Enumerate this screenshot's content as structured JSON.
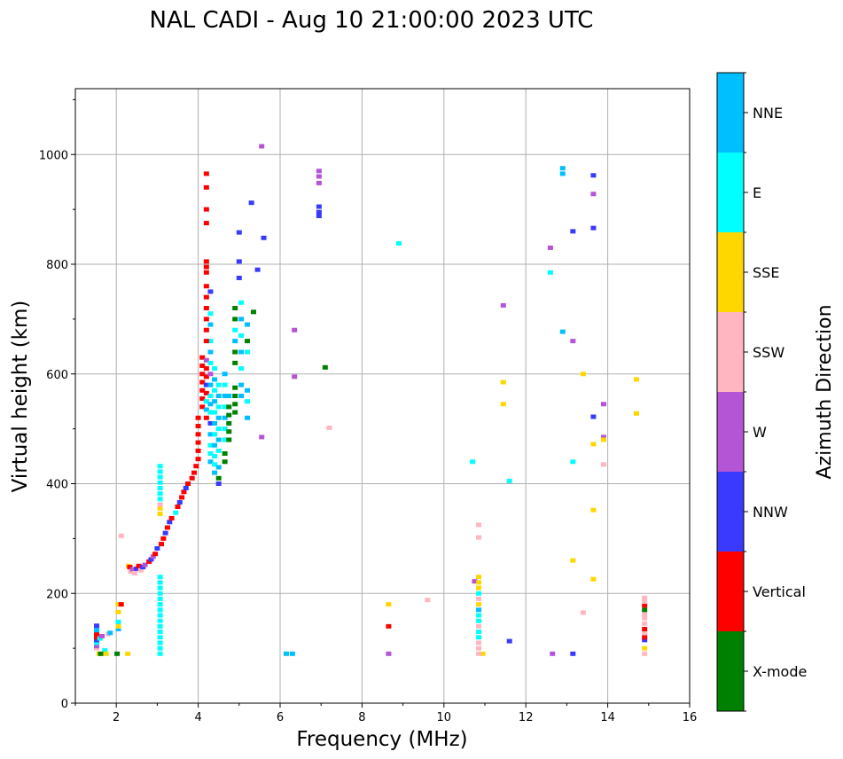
{
  "chart_data": {
    "type": "scatter",
    "title": "NAL CADI - Aug 10 21:00:00 2023 UTC",
    "xlabel": "Frequency (MHz)",
    "ylabel": "Virtual height (km)",
    "xlim": [
      1,
      16
    ],
    "ylim": [
      0,
      1120
    ],
    "xticks": [
      2,
      4,
      6,
      8,
      10,
      12,
      14,
      16
    ],
    "xtick_labels": [
      "2",
      "4",
      "6",
      "8",
      "10",
      "12",
      "14",
      "16"
    ],
    "yticks": [
      0,
      200,
      400,
      600,
      800,
      1000
    ],
    "ytick_labels": [
      "0",
      "200",
      "400",
      "600",
      "800",
      "1000"
    ],
    "grid": true,
    "colorbar": {
      "title": "Azimuth Direction",
      "categories": [
        "X-mode",
        "Vertical",
        "NNW",
        "W",
        "SSW",
        "SSE",
        "E",
        "NNE"
      ],
      "colors": [
        "#008000",
        "#ff0000",
        "#3a3aff",
        "#b455d6",
        "#ffb6c1",
        "#ffd700",
        "#00ffff",
        "#00bfff"
      ]
    },
    "points": [
      [
        1.52,
        100,
        "SSW"
      ],
      [
        1.52,
        104,
        "W"
      ],
      [
        1.52,
        110,
        "E"
      ],
      [
        1.52,
        115,
        "NNW"
      ],
      [
        1.52,
        120,
        "Vertical"
      ],
      [
        1.52,
        127,
        "Vertical"
      ],
      [
        1.52,
        133,
        "NNE"
      ],
      [
        1.52,
        141,
        "NNW"
      ],
      [
        1.6,
        118,
        "E"
      ],
      [
        1.65,
        122,
        "W"
      ],
      [
        1.72,
        96,
        "E"
      ],
      [
        1.8,
        126,
        "SSW"
      ],
      [
        1.85,
        128,
        "NNE"
      ],
      [
        1.58,
        90,
        "SSE"
      ],
      [
        1.62,
        90,
        "X-mode"
      ],
      [
        1.75,
        90,
        "SSE"
      ],
      [
        2.02,
        90,
        "X-mode"
      ],
      [
        2.28,
        90,
        "SSE"
      ],
      [
        2.05,
        135,
        "NNE"
      ],
      [
        2.05,
        140,
        "SSE"
      ],
      [
        2.05,
        148,
        "E"
      ],
      [
        2.05,
        166,
        "SSE"
      ],
      [
        2.05,
        180,
        "SSE"
      ],
      [
        2.12,
        180,
        "Vertical"
      ],
      [
        2.12,
        305,
        "SSW"
      ],
      [
        2.3,
        250,
        "SSE"
      ],
      [
        2.33,
        248,
        "Vertical"
      ],
      [
        2.35,
        240,
        "SSW"
      ],
      [
        2.4,
        244,
        "W"
      ],
      [
        2.45,
        237,
        "SSW"
      ],
      [
        2.5,
        245,
        "NNW"
      ],
      [
        2.55,
        250,
        "Vertical"
      ],
      [
        2.6,
        242,
        "SSW"
      ],
      [
        2.65,
        248,
        "NNW"
      ],
      [
        2.7,
        252,
        "W"
      ],
      [
        2.8,
        258,
        "Vertical"
      ],
      [
        2.85,
        262,
        "NNW"
      ],
      [
        2.9,
        267,
        "W"
      ],
      [
        2.95,
        272,
        "Vertical"
      ],
      [
        3.0,
        282,
        "NNW"
      ],
      [
        3.1,
        290,
        "Vertical"
      ],
      [
        3.15,
        300,
        "Vertical"
      ],
      [
        3.2,
        310,
        "NNW"
      ],
      [
        3.25,
        320,
        "Vertical"
      ],
      [
        3.3,
        330,
        "NNW"
      ],
      [
        3.35,
        337,
        "Vertical"
      ],
      [
        3.45,
        347,
        "E"
      ],
      [
        3.5,
        358,
        "Vertical"
      ],
      [
        3.55,
        366,
        "NNW"
      ],
      [
        3.6,
        375,
        "Vertical"
      ],
      [
        3.65,
        385,
        "Vertical"
      ],
      [
        3.7,
        392,
        "NNW"
      ],
      [
        3.75,
        400,
        "Vertical"
      ],
      [
        3.85,
        410,
        "Vertical"
      ],
      [
        3.9,
        420,
        "Vertical"
      ],
      [
        3.95,
        432,
        "Vertical"
      ],
      [
        4.0,
        445,
        "Vertical"
      ],
      [
        3.07,
        90,
        "E"
      ],
      [
        3.07,
        100,
        "E"
      ],
      [
        3.07,
        110,
        "E"
      ],
      [
        3.07,
        120,
        "E"
      ],
      [
        3.07,
        130,
        "E"
      ],
      [
        3.07,
        140,
        "E"
      ],
      [
        3.07,
        150,
        "E"
      ],
      [
        3.07,
        160,
        "E"
      ],
      [
        3.07,
        170,
        "E"
      ],
      [
        3.07,
        180,
        "E"
      ],
      [
        3.07,
        190,
        "E"
      ],
      [
        3.07,
        200,
        "E"
      ],
      [
        3.07,
        210,
        "E"
      ],
      [
        3.07,
        220,
        "E"
      ],
      [
        3.07,
        230,
        "E"
      ],
      [
        3.07,
        345,
        "SSE"
      ],
      [
        3.07,
        355,
        "SSE"
      ],
      [
        3.07,
        362,
        "SSW"
      ],
      [
        3.07,
        372,
        "E"
      ],
      [
        3.07,
        382,
        "E"
      ],
      [
        3.07,
        392,
        "E"
      ],
      [
        3.07,
        402,
        "E"
      ],
      [
        3.07,
        412,
        "E"
      ],
      [
        3.07,
        422,
        "E"
      ],
      [
        3.07,
        432,
        "E"
      ],
      [
        4.0,
        460,
        "Vertical"
      ],
      [
        4.0,
        475,
        "Vertical"
      ],
      [
        4.0,
        490,
        "Vertical"
      ],
      [
        4.0,
        505,
        "Vertical"
      ],
      [
        4.0,
        520,
        "Vertical"
      ],
      [
        4.1,
        540,
        "Vertical"
      ],
      [
        4.1,
        555,
        "Vertical"
      ],
      [
        4.1,
        570,
        "Vertical"
      ],
      [
        4.1,
        585,
        "Vertical"
      ],
      [
        4.1,
        600,
        "Vertical"
      ],
      [
        4.1,
        615,
        "Vertical"
      ],
      [
        4.1,
        630,
        "Vertical"
      ],
      [
        4.2,
        520,
        "Vertical"
      ],
      [
        4.2,
        535,
        "NNE"
      ],
      [
        4.2,
        550,
        "E"
      ],
      [
        4.2,
        565,
        "Vertical"
      ],
      [
        4.2,
        580,
        "NNW"
      ],
      [
        4.2,
        595,
        "Vertical"
      ],
      [
        4.2,
        610,
        "Vertical"
      ],
      [
        4.2,
        625,
        "W"
      ],
      [
        4.3,
        440,
        "NNE"
      ],
      [
        4.3,
        455,
        "E"
      ],
      [
        4.3,
        470,
        "E"
      ],
      [
        4.3,
        490,
        "NNE"
      ],
      [
        4.3,
        510,
        "NNW"
      ],
      [
        4.3,
        530,
        "E"
      ],
      [
        4.3,
        545,
        "NNE"
      ],
      [
        4.3,
        560,
        "E"
      ],
      [
        4.3,
        580,
        "NNE"
      ],
      [
        4.3,
        600,
        "W"
      ],
      [
        4.3,
        620,
        "E"
      ],
      [
        4.3,
        640,
        "NNE"
      ],
      [
        4.3,
        660,
        "E"
      ],
      [
        4.3,
        690,
        "NNE"
      ],
      [
        4.3,
        710,
        "E"
      ],
      [
        4.3,
        750,
        "NNW"
      ],
      [
        4.4,
        420,
        "NNE"
      ],
      [
        4.4,
        435,
        "E"
      ],
      [
        4.4,
        450,
        "E"
      ],
      [
        4.4,
        470,
        "NNE"
      ],
      [
        4.4,
        490,
        "E"
      ],
      [
        4.4,
        510,
        "NNE"
      ],
      [
        4.4,
        530,
        "E"
      ],
      [
        4.4,
        550,
        "NNE"
      ],
      [
        4.4,
        570,
        "E"
      ],
      [
        4.4,
        590,
        "NNE"
      ],
      [
        4.4,
        610,
        "E"
      ],
      [
        4.5,
        400,
        "NNW"
      ],
      [
        4.5,
        410,
        "X-mode"
      ],
      [
        4.5,
        430,
        "NNE"
      ],
      [
        4.5,
        460,
        "E"
      ],
      [
        4.5,
        480,
        "NNE"
      ],
      [
        4.5,
        500,
        "E"
      ],
      [
        4.5,
        520,
        "NNE"
      ],
      [
        4.5,
        540,
        "E"
      ],
      [
        4.5,
        560,
        "NNE"
      ],
      [
        4.5,
        580,
        "E"
      ],
      [
        4.65,
        440,
        "X-mode"
      ],
      [
        4.65,
        455,
        "X-mode"
      ],
      [
        4.65,
        480,
        "E"
      ],
      [
        4.65,
        500,
        "E"
      ],
      [
        4.65,
        520,
        "NNE"
      ],
      [
        4.65,
        540,
        "E"
      ],
      [
        4.65,
        560,
        "NNE"
      ],
      [
        4.65,
        580,
        "E"
      ],
      [
        4.65,
        600,
        "NNE"
      ],
      [
        4.75,
        480,
        "X-mode"
      ],
      [
        4.75,
        495,
        "X-mode"
      ],
      [
        4.75,
        510,
        "X-mode"
      ],
      [
        4.75,
        525,
        "X-mode"
      ],
      [
        4.75,
        540,
        "X-mode"
      ],
      [
        4.75,
        560,
        "NNE"
      ],
      [
        4.9,
        530,
        "X-mode"
      ],
      [
        4.9,
        545,
        "X-mode"
      ],
      [
        4.9,
        560,
        "X-mode"
      ],
      [
        4.9,
        575,
        "X-mode"
      ],
      [
        4.9,
        620,
        "X-mode"
      ],
      [
        4.9,
        640,
        "X-mode"
      ],
      [
        4.9,
        660,
        "NNE"
      ],
      [
        4.9,
        680,
        "E"
      ],
      [
        4.9,
        700,
        "X-mode"
      ],
      [
        4.9,
        720,
        "X-mode"
      ],
      [
        5.05,
        560,
        "NNE"
      ],
      [
        5.05,
        580,
        "NNE"
      ],
      [
        5.05,
        610,
        "E"
      ],
      [
        5.05,
        640,
        "NNE"
      ],
      [
        5.05,
        670,
        "E"
      ],
      [
        5.05,
        700,
        "NNE"
      ],
      [
        5.05,
        730,
        "E"
      ],
      [
        5.2,
        520,
        "NNE"
      ],
      [
        5.2,
        550,
        "E"
      ],
      [
        5.2,
        570,
        "NNE"
      ],
      [
        5.2,
        640,
        "E"
      ],
      [
        5.2,
        660,
        "X-mode"
      ],
      [
        5.2,
        690,
        "NNE"
      ],
      [
        4.2,
        965,
        "Vertical"
      ],
      [
        4.2,
        940,
        "Vertical"
      ],
      [
        4.2,
        900,
        "Vertical"
      ],
      [
        4.2,
        875,
        "Vertical"
      ],
      [
        4.2,
        805,
        "Vertical"
      ],
      [
        4.2,
        795,
        "Vertical"
      ],
      [
        4.2,
        785,
        "Vertical"
      ],
      [
        4.2,
        760,
        "Vertical"
      ],
      [
        4.2,
        740,
        "Vertical"
      ],
      [
        4.2,
        720,
        "Vertical"
      ],
      [
        4.2,
        700,
        "Vertical"
      ],
      [
        4.2,
        680,
        "Vertical"
      ],
      [
        4.2,
        660,
        "Vertical"
      ],
      [
        5.0,
        858,
        "NNW"
      ],
      [
        5.0,
        805,
        "NNW"
      ],
      [
        5.0,
        775,
        "NNW"
      ],
      [
        5.3,
        912,
        "NNW"
      ],
      [
        5.55,
        1015,
        "W"
      ],
      [
        5.6,
        848,
        "NNW"
      ],
      [
        5.45,
        790,
        "NNW"
      ],
      [
        5.35,
        713,
        "X-mode"
      ],
      [
        5.55,
        485,
        "W"
      ],
      [
        6.15,
        90,
        "NNE"
      ],
      [
        6.3,
        90,
        "NNE"
      ],
      [
        6.35,
        680,
        "W"
      ],
      [
        6.35,
        595,
        "W"
      ],
      [
        7.1,
        612,
        "X-mode"
      ],
      [
        7.2,
        502,
        "SSW"
      ],
      [
        6.95,
        970,
        "W"
      ],
      [
        6.95,
        960,
        "W"
      ],
      [
        6.95,
        948,
        "W"
      ],
      [
        6.95,
        905,
        "NNW"
      ],
      [
        6.95,
        895,
        "NNW"
      ],
      [
        6.95,
        888,
        "NNW"
      ],
      [
        8.65,
        180,
        "SSE"
      ],
      [
        8.65,
        140,
        "Vertical"
      ],
      [
        8.65,
        90,
        "W"
      ],
      [
        8.9,
        838,
        "E"
      ],
      [
        9.6,
        188,
        "SSW"
      ],
      [
        10.7,
        440,
        "E"
      ],
      [
        10.75,
        222,
        "W"
      ],
      [
        10.85,
        325,
        "SSW"
      ],
      [
        10.85,
        302,
        "SSW"
      ],
      [
        11.6,
        405,
        "E"
      ],
      [
        11.6,
        113,
        "NNW"
      ],
      [
        10.95,
        90,
        "SSE"
      ],
      [
        10.85,
        90,
        "SSW"
      ],
      [
        10.85,
        100,
        "SSW"
      ],
      [
        10.85,
        110,
        "SSW"
      ],
      [
        10.85,
        120,
        "E"
      ],
      [
        10.85,
        130,
        "E"
      ],
      [
        10.85,
        140,
        "SSW"
      ],
      [
        10.85,
        150,
        "E"
      ],
      [
        10.85,
        160,
        "E"
      ],
      [
        10.85,
        170,
        "NNE"
      ],
      [
        10.85,
        180,
        "SSE"
      ],
      [
        10.85,
        190,
        "SSW"
      ],
      [
        10.85,
        200,
        "E"
      ],
      [
        10.85,
        210,
        "SSE"
      ],
      [
        10.85,
        220,
        "SSE"
      ],
      [
        10.85,
        230,
        "SSE"
      ],
      [
        11.45,
        725,
        "W"
      ],
      [
        11.45,
        585,
        "SSE"
      ],
      [
        11.45,
        545,
        "SSE"
      ],
      [
        12.6,
        830,
        "W"
      ],
      [
        12.6,
        785,
        "E"
      ],
      [
        12.65,
        90,
        "W"
      ],
      [
        12.9,
        975,
        "NNE"
      ],
      [
        12.9,
        965,
        "NNE"
      ],
      [
        12.9,
        677,
        "NNE"
      ],
      [
        13.15,
        860,
        "NNW"
      ],
      [
        13.15,
        660,
        "W"
      ],
      [
        13.15,
        440,
        "E"
      ],
      [
        13.15,
        260,
        "SSE"
      ],
      [
        13.15,
        90,
        "NNW"
      ],
      [
        13.4,
        600,
        "SSE"
      ],
      [
        13.4,
        165,
        "SSW"
      ],
      [
        13.65,
        962,
        "NNW"
      ],
      [
        13.65,
        928,
        "W"
      ],
      [
        13.65,
        866,
        "NNW"
      ],
      [
        13.65,
        522,
        "NNW"
      ],
      [
        13.65,
        472,
        "SSE"
      ],
      [
        13.65,
        352,
        "SSE"
      ],
      [
        13.65,
        226,
        "SSE"
      ],
      [
        13.9,
        545,
        "W"
      ],
      [
        13.9,
        485,
        "W"
      ],
      [
        13.9,
        480,
        "SSE"
      ],
      [
        13.9,
        435,
        "SSW"
      ],
      [
        14.7,
        590,
        "SSE"
      ],
      [
        14.7,
        528,
        "SSE"
      ],
      [
        14.9,
        90,
        "SSW"
      ],
      [
        14.9,
        100,
        "SSE"
      ],
      [
        14.9,
        115,
        "NNW"
      ],
      [
        14.9,
        120,
        "Vertical"
      ],
      [
        14.9,
        128,
        "SSW"
      ],
      [
        14.9,
        135,
        "Vertical"
      ],
      [
        14.9,
        145,
        "SSW"
      ],
      [
        14.9,
        155,
        "SSW"
      ],
      [
        14.9,
        162,
        "SSW"
      ],
      [
        14.9,
        170,
        "X-mode"
      ],
      [
        14.9,
        178,
        "Vertical"
      ],
      [
        14.9,
        185,
        "SSW"
      ],
      [
        14.9,
        192,
        "SSW"
      ]
    ]
  }
}
